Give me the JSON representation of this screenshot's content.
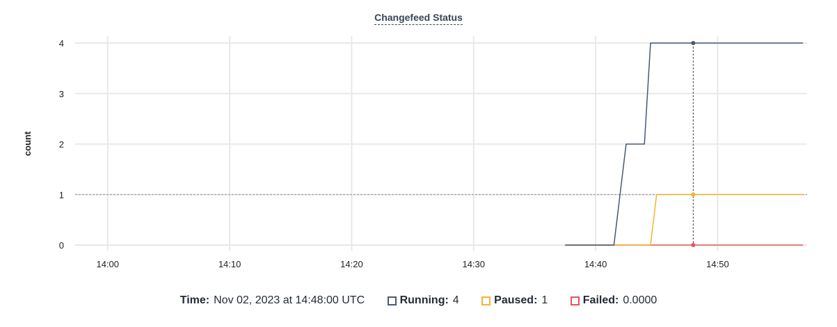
{
  "chart_data": {
    "type": "line",
    "title": "Changefeed Status",
    "xlabel": "",
    "ylabel": "count",
    "x_ticks": [
      "14:00",
      "14:10",
      "14:20",
      "14:30",
      "14:40",
      "14:50"
    ],
    "y_ticks": [
      0,
      1,
      2,
      3,
      4
    ],
    "xlim": [
      "13:57:20",
      "14:57:20"
    ],
    "ylim": [
      0,
      4
    ],
    "grid": true,
    "series": [
      {
        "name": "Running",
        "color": "#475872",
        "points": [
          [
            "14:37:30",
            0
          ],
          [
            "14:41:30",
            0
          ],
          [
            "14:42:30",
            2
          ],
          [
            "14:44:00",
            2
          ],
          [
            "14:44:30",
            4
          ],
          [
            "14:57:00",
            4
          ]
        ]
      },
      {
        "name": "Paused",
        "color": "#F5B331",
        "points": [
          [
            "14:37:30",
            0
          ],
          [
            "14:44:30",
            0
          ],
          [
            "14:45:00",
            1
          ],
          [
            "14:57:00",
            1
          ]
        ]
      },
      {
        "name": "Failed",
        "color": "#E2555E",
        "points": [
          [
            "14:37:30",
            0
          ],
          [
            "14:57:00",
            0
          ]
        ]
      }
    ],
    "hover": {
      "time": "14:48:00",
      "y_reference": 1
    }
  },
  "legend": {
    "time_label": "Time:",
    "time_value": "Nov 02, 2023 at 14:48:00 UTC",
    "items": [
      {
        "label": "Running:",
        "value": "4",
        "color": "#475872"
      },
      {
        "label": "Paused:",
        "value": "1",
        "color": "#F5B331"
      },
      {
        "label": "Failed:",
        "value": "0.0000",
        "color": "#E2555E"
      }
    ]
  }
}
